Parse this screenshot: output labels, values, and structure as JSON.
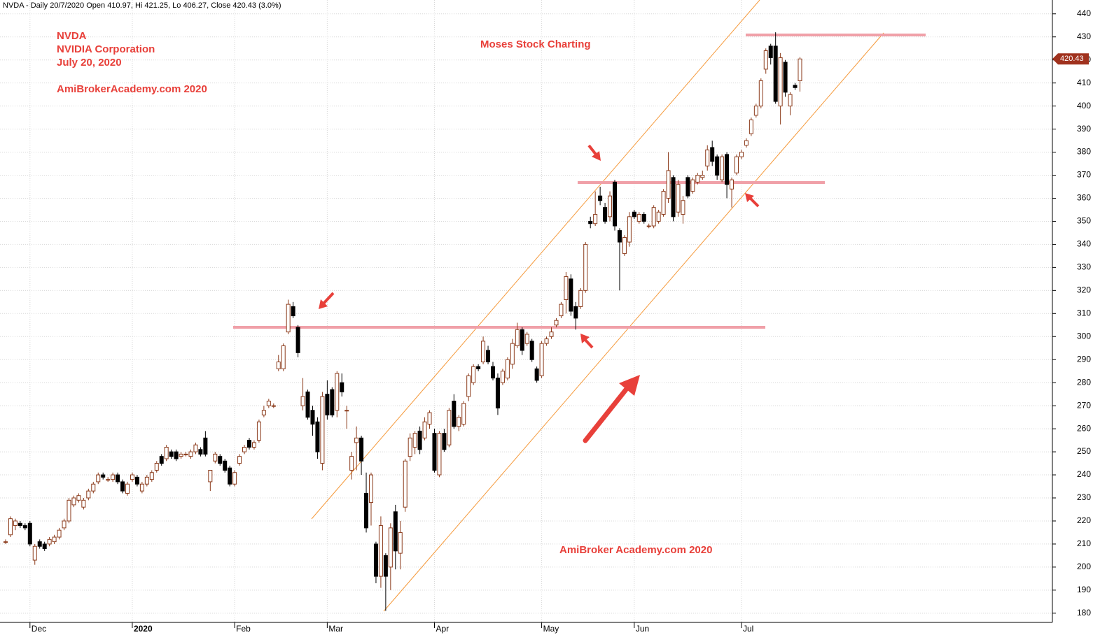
{
  "chart_data": {
    "type": "candlestick",
    "title": "NVDA - Daily 20/7/2020 Open 410.97, Hi 421.25, Lo 406.27, Close 420.43 (3.0%)",
    "annotations": [
      "NVDA",
      "NVIDIA Corporation",
      "July 20, 2020",
      "AmiBrokerAcademy.com  2020",
      "Moses Stock Charting",
      "AmiBroker Academy.com  2020"
    ],
    "ylim": [
      176,
      446
    ],
    "yticks": [
      180,
      190,
      200,
      210,
      220,
      230,
      240,
      250,
      260,
      270,
      280,
      290,
      300,
      310,
      320,
      330,
      340,
      350,
      360,
      370,
      380,
      390,
      400,
      410,
      420,
      430,
      440
    ],
    "xlim": [
      -0.5,
      216
    ],
    "xticks": [
      {
        "value": 5,
        "label": "Dec"
      },
      {
        "value": 26,
        "label": "2020"
      },
      {
        "value": 47,
        "label": "Feb"
      },
      {
        "value": 66,
        "label": "Mar"
      },
      {
        "value": 88,
        "label": "Apr"
      },
      {
        "value": 110,
        "label": "May"
      },
      {
        "value": 129,
        "label": "Jun"
      },
      {
        "value": 151,
        "label": "Jul"
      }
    ],
    "grid": true,
    "up_color": "#8b3a1a",
    "down_color": "#000000",
    "ohlc": [
      [
        211,
        212,
        210,
        211
      ],
      [
        214,
        222,
        213,
        221
      ],
      [
        218,
        221,
        216,
        220
      ],
      [
        219,
        220,
        217,
        218
      ],
      [
        218,
        219,
        216,
        217
      ],
      [
        219,
        220,
        209,
        210
      ],
      [
        203,
        210,
        201,
        209
      ],
      [
        211,
        212,
        208,
        209
      ],
      [
        210,
        211,
        207,
        208
      ],
      [
        210,
        213,
        209,
        212
      ],
      [
        211,
        214,
        210,
        213
      ],
      [
        213,
        217,
        212,
        216
      ],
      [
        217,
        221,
        216,
        220
      ],
      [
        220,
        230,
        219,
        229
      ],
      [
        227,
        231,
        226,
        230
      ],
      [
        229,
        232,
        228,
        231
      ],
      [
        226,
        230,
        225,
        229
      ],
      [
        230,
        234,
        229,
        233
      ],
      [
        233,
        237,
        232,
        236
      ],
      [
        237,
        241,
        236,
        240
      ],
      [
        240,
        241,
        238,
        239
      ],
      [
        238,
        239,
        237,
        238
      ],
      [
        238,
        241,
        237,
        240
      ],
      [
        240,
        241,
        236,
        237
      ],
      [
        237,
        238,
        232,
        233
      ],
      [
        232,
        237,
        231,
        236
      ],
      [
        238,
        241,
        237,
        240
      ],
      [
        239,
        240,
        235,
        236
      ],
      [
        233,
        237,
        232,
        236
      ],
      [
        236,
        240,
        235,
        239
      ],
      [
        238,
        242,
        237,
        241
      ],
      [
        242,
        246,
        241,
        245
      ],
      [
        248,
        249,
        244,
        245
      ],
      [
        247,
        253,
        246,
        252
      ],
      [
        250,
        251,
        247,
        248
      ],
      [
        250,
        251,
        246,
        247
      ],
      [
        248,
        250,
        247,
        249
      ],
      [
        249,
        250,
        248,
        249
      ],
      [
        248,
        251,
        247,
        250
      ],
      [
        250,
        254,
        249,
        253
      ],
      [
        251,
        252,
        248,
        249
      ],
      [
        256,
        259,
        248,
        249
      ],
      [
        237,
        242,
        233,
        242
      ],
      [
        246,
        250,
        245,
        249
      ],
      [
        248,
        249,
        244,
        245
      ],
      [
        246,
        247,
        241,
        242
      ],
      [
        243,
        244,
        235,
        236
      ],
      [
        236,
        242,
        235,
        241
      ],
      [
        245,
        249,
        244,
        248
      ],
      [
        250,
        253,
        249,
        252
      ],
      [
        255,
        256,
        251,
        252
      ],
      [
        252,
        255,
        251,
        254
      ],
      [
        255,
        264,
        254,
        263
      ],
      [
        266,
        270,
        265,
        268
      ],
      [
        270,
        273,
        269,
        272
      ],
      [
        270,
        271,
        269,
        270
      ],
      [
        286,
        292,
        285,
        289
      ],
      [
        286,
        297,
        285,
        296
      ],
      [
        302,
        316,
        301,
        314
      ],
      [
        313,
        315,
        308,
        309
      ],
      [
        304,
        305,
        291,
        293
      ],
      [
        270,
        282,
        268,
        274
      ],
      [
        276,
        277,
        264,
        265
      ],
      [
        268,
        270,
        257,
        262
      ],
      [
        263,
        265,
        247,
        250
      ],
      [
        245,
        276,
        242,
        274
      ],
      [
        275,
        281,
        264,
        266
      ],
      [
        277,
        278,
        265,
        266
      ],
      [
        268,
        285,
        265,
        284
      ],
      [
        280,
        284,
        274,
        276
      ],
      [
        268,
        270,
        260,
        268
      ],
      [
        242,
        250,
        238,
        248
      ],
      [
        254,
        261,
        242,
        256
      ],
      [
        256,
        257,
        240,
        246
      ],
      [
        232,
        241,
        215,
        217
      ],
      [
        228,
        241,
        218,
        240
      ],
      [
        210,
        211,
        193,
        196
      ],
      [
        196,
        222,
        191,
        218
      ],
      [
        205,
        206,
        181,
        196
      ],
      [
        200,
        219,
        190,
        217
      ],
      [
        224,
        227,
        199,
        207
      ],
      [
        206,
        220,
        199,
        215
      ],
      [
        226,
        247,
        224,
        246
      ],
      [
        248,
        258,
        246,
        256
      ],
      [
        252,
        259,
        249,
        258
      ],
      [
        259,
        261,
        249,
        251
      ],
      [
        256,
        265,
        255,
        263
      ],
      [
        262,
        268,
        260,
        267
      ],
      [
        258,
        260,
        241,
        242
      ],
      [
        240,
        259,
        239,
        258
      ],
      [
        258,
        260,
        250,
        251
      ],
      [
        253,
        269,
        252,
        268
      ],
      [
        272,
        275,
        260,
        261
      ],
      [
        261,
        266,
        259,
        265
      ],
      [
        262,
        272,
        261,
        271
      ],
      [
        274,
        284,
        272,
        283
      ],
      [
        280,
        288,
        279,
        287
      ],
      [
        287,
        288,
        285,
        286
      ],
      [
        289,
        300,
        288,
        298
      ],
      [
        294,
        296,
        288,
        289
      ],
      [
        287,
        289,
        281,
        282
      ],
      [
        282,
        284,
        266,
        269
      ],
      [
        280,
        286,
        279,
        285
      ],
      [
        282,
        291,
        281,
        290
      ],
      [
        288,
        299,
        286,
        297
      ],
      [
        296,
        306,
        295,
        303
      ],
      [
        303,
        304,
        292,
        294
      ],
      [
        297,
        302,
        296,
        301
      ],
      [
        298,
        299,
        289,
        290
      ],
      [
        286,
        287,
        280,
        281
      ],
      [
        283,
        298,
        282,
        297
      ],
      [
        297,
        300,
        296,
        299
      ],
      [
        300,
        304,
        299,
        302
      ],
      [
        305,
        308,
        304,
        307
      ],
      [
        309,
        315,
        308,
        314
      ],
      [
        316,
        328,
        310,
        326
      ],
      [
        325,
        327,
        309,
        311
      ],
      [
        313,
        315,
        303,
        308
      ],
      [
        313,
        321,
        312,
        320
      ],
      [
        320,
        341,
        319,
        340
      ],
      [
        350,
        352,
        347,
        349
      ],
      [
        349,
        363,
        348,
        353
      ],
      [
        361,
        365,
        357,
        359
      ],
      [
        356,
        358,
        349,
        350
      ],
      [
        352,
        363,
        350,
        361
      ],
      [
        367,
        368,
        346,
        348
      ],
      [
        346,
        347,
        320,
        341
      ],
      [
        336,
        344,
        335,
        343
      ],
      [
        341,
        354,
        339,
        352
      ],
      [
        354,
        355,
        351,
        352
      ],
      [
        350,
        354,
        349,
        353
      ],
      [
        353,
        354,
        349,
        350
      ],
      [
        348,
        349,
        347,
        348
      ],
      [
        348,
        357,
        347,
        356
      ],
      [
        350,
        355,
        349,
        354
      ],
      [
        353,
        364,
        352,
        363
      ],
      [
        360,
        380,
        358,
        372
      ],
      [
        369,
        370,
        350,
        352
      ],
      [
        354,
        368,
        352,
        366
      ],
      [
        353,
        361,
        349,
        359
      ],
      [
        369,
        370,
        360,
        361
      ],
      [
        363,
        369,
        362,
        368
      ],
      [
        367,
        371,
        366,
        370
      ],
      [
        369,
        372,
        368,
        370
      ],
      [
        374,
        383,
        372,
        381
      ],
      [
        382,
        385,
        374,
        376
      ],
      [
        378,
        379,
        368,
        370
      ],
      [
        368,
        379,
        367,
        378
      ],
      [
        379,
        380,
        360,
        366
      ],
      [
        364,
        369,
        356,
        368
      ],
      [
        371,
        379,
        370,
        378
      ],
      [
        378,
        381,
        377,
        380
      ],
      [
        383,
        386,
        382,
        385
      ],
      [
        388,
        395,
        387,
        394
      ],
      [
        396,
        401,
        395,
        400
      ],
      [
        400,
        412,
        399,
        411
      ],
      [
        416,
        425,
        414,
        424
      ],
      [
        426,
        427,
        418,
        421
      ],
      [
        426,
        432,
        401,
        402
      ],
      [
        400,
        423,
        392,
        421
      ],
      [
        419,
        420,
        404,
        406
      ],
      [
        400,
        406,
        396,
        405
      ],
      [
        409,
        410,
        407,
        408
      ],
      [
        410.97,
        421.25,
        406.27,
        420.43
      ]
    ]
  }
}
